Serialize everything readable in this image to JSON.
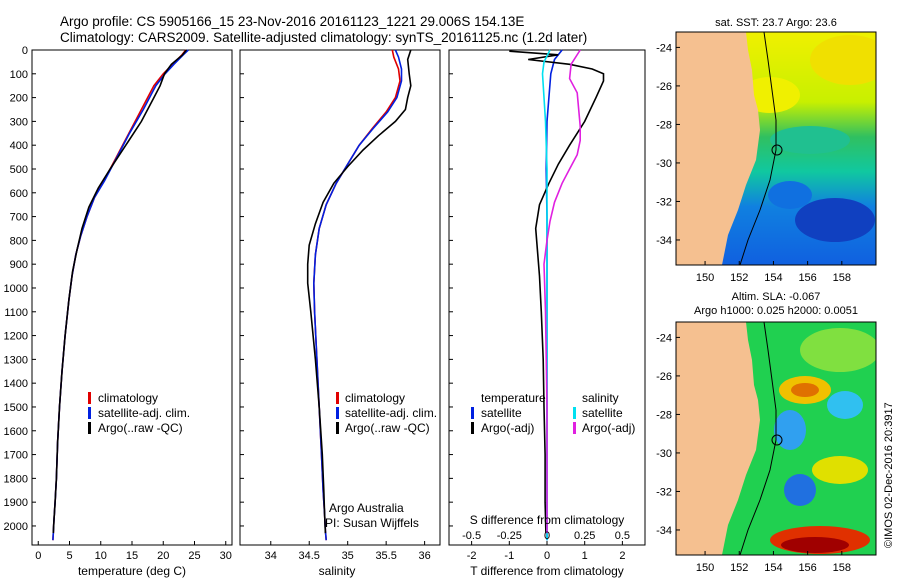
{
  "header": {
    "title_line1": "Argo profile: CS 5905166_15 23-Nov-2016 20161123_1221 29.006S 154.13E",
    "title_line2": "Climatology: CARS2009. Satellite-adjusted climatology: synTS_20161125.nc (1.2d later)"
  },
  "footer": {
    "credit": "©IMOS 02-Dec-2016 20:3917",
    "argo_australia": "Argo Australia",
    "pi": "PI: Susan Wijffels"
  },
  "colors": {
    "climatology": "#e00000",
    "satellite": "#0020e0",
    "argo": "#000000",
    "sat_diff_sal": "#00e0f0",
    "argo_diff_sal": "#e020e0",
    "land": "#f5c090"
  },
  "chart_data": [
    {
      "type": "line",
      "panel": "temperature",
      "xlabel": "temperature (deg C)",
      "ylabel": "",
      "xlim": [
        -1,
        31
      ],
      "ylim": [
        2080,
        0
      ],
      "xticks": [
        0,
        5,
        10,
        15,
        20,
        25,
        30
      ],
      "yticks": [
        0,
        100,
        200,
        300,
        400,
        500,
        600,
        700,
        800,
        900,
        1000,
        1100,
        1200,
        1300,
        1400,
        1500,
        1600,
        1700,
        1800,
        1900,
        2000
      ],
      "legend": [
        "climatology",
        "satellite-adj. clim.",
        "Argo(..raw -QC)"
      ],
      "series": [
        {
          "name": "climatology",
          "color": "#e00000",
          "x": [
            23.6,
            23.0,
            21.5,
            20.0,
            18.5,
            16.5,
            14.5,
            12.5,
            10.5,
            9.0,
            7.8,
            6.8,
            6.0,
            5.4,
            4.9,
            4.3,
            3.8,
            3.4,
            3.1,
            2.9,
            2.7,
            2.5,
            2.4,
            2.35
          ],
          "y": [
            0,
            20,
            60,
            100,
            150,
            250,
            350,
            450,
            550,
            620,
            700,
            780,
            860,
            950,
            1050,
            1200,
            1350,
            1500,
            1650,
            1800,
            1900,
            1980,
            2030,
            2060
          ]
        },
        {
          "name": "satellite-adj. clim.",
          "color": "#0020e0",
          "x": [
            24.0,
            23.2,
            21.7,
            20.3,
            18.8,
            16.8,
            14.6,
            12.6,
            10.6,
            9.0,
            7.8,
            6.8,
            6.0,
            5.4,
            4.9,
            4.3,
            3.8,
            3.4,
            3.1,
            2.9,
            2.7,
            2.5,
            2.4,
            2.35
          ],
          "y": [
            0,
            20,
            60,
            100,
            150,
            250,
            350,
            450,
            550,
            620,
            700,
            780,
            860,
            950,
            1050,
            1200,
            1350,
            1500,
            1650,
            1800,
            1900,
            1980,
            2030,
            2060
          ]
        },
        {
          "name": "Argo(..raw -QC)",
          "color": "#000000",
          "x": [
            23.7,
            23.1,
            21.3,
            20.2,
            19.5,
            18.5,
            16.5,
            14.0,
            11.5,
            9.6,
            8.1,
            7.0,
            6.2,
            5.5,
            4.9,
            4.3,
            3.8,
            3.4,
            3.1,
            2.9,
            2.7,
            2.5,
            2.4
          ],
          "y": [
            0,
            20,
            60,
            100,
            150,
            200,
            300,
            400,
            500,
            580,
            660,
            750,
            840,
            930,
            1050,
            1200,
            1350,
            1500,
            1650,
            1800,
            1900,
            1980,
            2030
          ]
        }
      ]
    },
    {
      "type": "line",
      "panel": "salinity",
      "xlabel": "salinity",
      "ylabel": "",
      "xlim": [
        33.6,
        36.2
      ],
      "ylim": [
        2080,
        0
      ],
      "xticks": [
        34,
        34.5,
        35,
        35.5,
        36
      ],
      "xticklabels": [
        "34",
        "34.5",
        "35",
        "35.5",
        "36"
      ],
      "legend": [
        "climatology",
        "satellite-adj. clim.",
        "Argo(..raw -QC)"
      ],
      "series": [
        {
          "name": "climatology",
          "color": "#e00000",
          "x": [
            35.58,
            35.6,
            35.66,
            35.68,
            35.62,
            35.5,
            35.32,
            35.15,
            35.0,
            34.85,
            34.72,
            34.63,
            34.58,
            34.56,
            34.57,
            34.6,
            34.63,
            34.66,
            34.68,
            34.7,
            34.71,
            34.72
          ],
          "y": [
            0,
            30,
            80,
            130,
            200,
            260,
            330,
            400,
            480,
            560,
            650,
            750,
            860,
            980,
            1100,
            1300,
            1500,
            1700,
            1850,
            1950,
            2020,
            2060
          ]
        },
        {
          "name": "satellite-adj. clim.",
          "color": "#0020e0",
          "x": [
            35.62,
            35.66,
            35.7,
            35.7,
            35.64,
            35.52,
            35.33,
            35.15,
            35.0,
            34.85,
            34.72,
            34.63,
            34.58,
            34.56,
            34.57,
            34.6,
            34.63,
            34.66,
            34.68,
            34.7,
            34.71,
            34.72
          ],
          "y": [
            0,
            30,
            80,
            130,
            200,
            260,
            330,
            400,
            480,
            560,
            650,
            750,
            860,
            980,
            1100,
            1300,
            1500,
            1700,
            1850,
            1950,
            2020,
            2060
          ]
        },
        {
          "name": "Argo(..raw -QC)",
          "color": "#000000",
          "x": [
            35.82,
            35.78,
            35.8,
            35.82,
            35.78,
            35.75,
            35.62,
            35.4,
            35.2,
            35.0,
            34.82,
            34.68,
            34.58,
            34.5,
            34.48,
            34.48,
            34.52,
            34.58,
            34.63,
            34.67,
            34.69,
            34.7,
            34.71
          ],
          "y": [
            0,
            40,
            100,
            150,
            200,
            250,
            300,
            360,
            420,
            490,
            560,
            640,
            730,
            820,
            900,
            980,
            1100,
            1300,
            1500,
            1700,
            1850,
            1950,
            2030
          ]
        }
      ]
    },
    {
      "type": "line",
      "panel": "difference",
      "xlabel": "T difference from climatology",
      "xlabel_top": "S difference from climatology",
      "ylabel": "",
      "xlim": [
        -2.6,
        2.6
      ],
      "ylim": [
        2080,
        0
      ],
      "xticks": [
        -2,
        -1,
        0,
        1,
        2
      ],
      "xticklabels": [
        "-2",
        "-1",
        "0",
        "1",
        "2"
      ],
      "sticks": [
        -0.5,
        -0.25,
        0,
        0.25,
        0.5
      ],
      "sticklabels": [
        "-0.5",
        "-0.25",
        "0",
        "0.25",
        "0.5"
      ],
      "slim": [
        -0.65,
        0.65
      ],
      "legend_temperature": {
        "heading": "temperature",
        "items": [
          "satellite",
          "Argo(-adj)"
        ]
      },
      "legend_salinity": {
        "heading": "salinity",
        "items": [
          "satellite",
          "Argo(-adj)"
        ]
      },
      "series": [
        {
          "name": "satellite",
          "quantity": "temperature",
          "color": "#0020e0",
          "x": [
            0.4,
            0.2,
            0.1,
            0.05,
            0.0,
            -0.02,
            0.0,
            0.0,
            0.0,
            0.0,
            0.0,
            0.0
          ],
          "y": [
            0,
            40,
            100,
            200,
            300,
            500,
            700,
            900,
            1200,
            1500,
            1800,
            2060
          ]
        },
        {
          "name": "Argo(-adj)",
          "quantity": "temperature",
          "color": "#000000",
          "x": [
            -1.0,
            0.3,
            -0.5,
            0.6,
            1.2,
            1.5,
            1.5,
            1.3,
            1.0,
            0.6,
            0.3,
            0.05,
            -0.2,
            -0.3,
            -0.25,
            -0.2,
            -0.15,
            -0.1,
            -0.08,
            -0.05,
            -0.05,
            -0.03
          ],
          "y": [
            5,
            20,
            40,
            60,
            80,
            100,
            130,
            200,
            300,
            400,
            480,
            560,
            650,
            750,
            850,
            950,
            1100,
            1300,
            1500,
            1700,
            1900,
            2030
          ]
        },
        {
          "name": "satellite",
          "quantity": "salinity",
          "color": "#00e0f0",
          "x": [
            0.02,
            -0.02,
            -0.03,
            -0.02,
            -0.01,
            0.0,
            0.0,
            0.0,
            0.0,
            0.0,
            0.0
          ],
          "y": [
            0,
            50,
            100,
            200,
            300,
            500,
            700,
            900,
            1200,
            1600,
            2060
          ]
        },
        {
          "name": "Argo(-adj)",
          "quantity": "salinity",
          "color": "#e020e0",
          "x": [
            0.22,
            0.16,
            0.15,
            0.2,
            0.21,
            0.22,
            0.22,
            0.2,
            0.15,
            0.1,
            0.05,
            0.02,
            0.0,
            -0.02,
            -0.01,
            0.0,
            0.0
          ],
          "y": [
            0,
            60,
            120,
            180,
            250,
            320,
            380,
            440,
            500,
            560,
            640,
            720,
            800,
            900,
            1100,
            1500,
            2030
          ]
        }
      ]
    },
    {
      "type": "heatmap",
      "panel": "sst_map",
      "title": "sat. SST: 23.7 Argo: 23.6",
      "xticks": [
        150,
        152,
        154,
        156,
        158
      ],
      "yticks": [
        -24,
        -26,
        -28,
        -30,
        -32,
        -34
      ],
      "xlim": [
        148.3,
        160
      ],
      "ylim": [
        -35.3,
        -23.2
      ],
      "marker": {
        "lon": 154.13,
        "lat": -29.006
      }
    },
    {
      "type": "heatmap",
      "panel": "sla_map",
      "title": "Altim. SLA: -0.067",
      "subtitle": "Argo h1000: 0.025 h2000: 0.0051",
      "xticks": [
        150,
        152,
        154,
        156,
        158
      ],
      "yticks": [
        -24,
        -26,
        -28,
        -30,
        -32,
        -34
      ],
      "xlim": [
        148.3,
        160
      ],
      "ylim": [
        -35.3,
        -23.2
      ],
      "marker": {
        "lon": 154.13,
        "lat": -29.006
      }
    }
  ]
}
